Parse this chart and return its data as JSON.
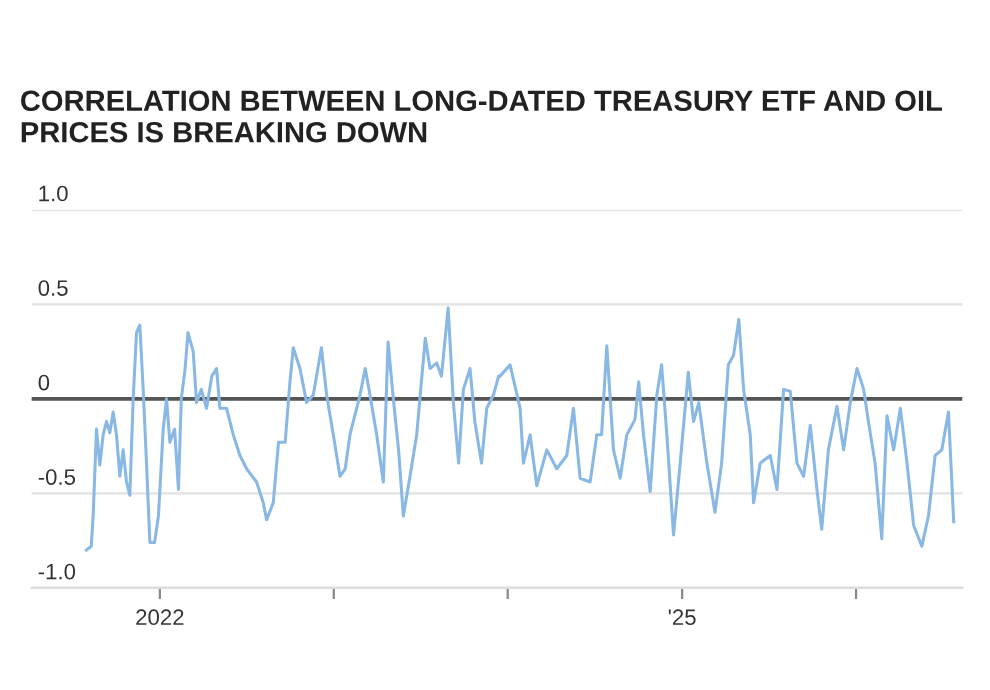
{
  "chart_data": {
    "type": "line",
    "subtitle": "CORRELATION BETWEEN LONG-DATED TREASURY ETF AND OIL PRICES IS BREAKING DOWN",
    "x": [
      "2021-07-31",
      "2021-08-10",
      "2021-08-14",
      "2021-08-21",
      "2021-08-28",
      "2021-09-04",
      "2021-09-11",
      "2021-09-18",
      "2021-09-25",
      "2021-10-02",
      "2021-10-09",
      "2021-10-16",
      "2021-10-23",
      "2021-10-30",
      "2021-11-06",
      "2021-11-13",
      "2021-11-20",
      "2021-11-27",
      "2021-12-04",
      "2021-12-11",
      "2021-12-21",
      "2021-12-29",
      "2022-01-08",
      "2022-01-15",
      "2022-01-22",
      "2022-02-01",
      "2022-02-09",
      "2022-02-15",
      "2022-02-23",
      "2022-03-01",
      "2022-03-12",
      "2022-03-19",
      "2022-03-29",
      "2022-04-09",
      "2022-04-20",
      "2022-04-30",
      "2022-05-07",
      "2022-05-21",
      "2022-06-04",
      "2022-06-18",
      "2022-07-02",
      "2022-07-23",
      "2022-08-06",
      "2022-08-13",
      "2022-08-27",
      "2022-09-07",
      "2022-09-21",
      "2022-10-01",
      "2022-10-08",
      "2022-10-22",
      "2022-11-05",
      "2022-11-19",
      "2022-12-06",
      "2022-12-17",
      "2022-12-31",
      "2023-01-14",
      "2023-01-25",
      "2023-02-04",
      "2023-02-25",
      "2023-03-08",
      "2023-03-18",
      "2023-04-01",
      "2023-04-15",
      "2023-04-25",
      "2023-05-06",
      "2023-05-17",
      "2023-05-27",
      "2023-06-10",
      "2023-06-24",
      "2023-07-12",
      "2023-07-22",
      "2023-08-05",
      "2023-08-15",
      "2023-08-29",
      "2023-09-09",
      "2023-09-20",
      "2023-09-30",
      "2023-10-14",
      "2023-10-24",
      "2023-11-07",
      "2023-11-18",
      "2023-12-02",
      "2023-12-13",
      "2023-12-16",
      "2024-01-06",
      "2024-01-27",
      "2024-02-03",
      "2024-02-17",
      "2024-03-02",
      "2024-03-23",
      "2024-04-13",
      "2024-05-04",
      "2024-05-18",
      "2024-06-01",
      "2024-06-22",
      "2024-07-06",
      "2024-07-16",
      "2024-07-27",
      "2024-08-10",
      "2024-08-24",
      "2024-09-07",
      "2024-09-24",
      "2024-10-02",
      "2024-10-12",
      "2024-10-26",
      "2024-11-09",
      "2024-11-19",
      "2024-11-30",
      "2024-12-14",
      "2024-12-28",
      "2025-01-14",
      "2025-01-25",
      "2025-02-05",
      "2025-02-22",
      "2025-03-11",
      "2025-03-25",
      "2025-04-08",
      "2025-04-19",
      "2025-04-30",
      "2025-05-10",
      "2025-05-24",
      "2025-05-31",
      "2025-06-14",
      "2025-07-05",
      "2025-07-19",
      "2025-08-02",
      "2025-08-16",
      "2025-08-30",
      "2025-09-13",
      "2025-09-27",
      "2025-10-11",
      "2025-10-21",
      "2025-11-04",
      "2025-11-22",
      "2025-12-06",
      "2025-12-20",
      "2026-01-03",
      "2026-01-17",
      "2026-01-27",
      "2026-02-10",
      "2026-02-24",
      "2026-03-07",
      "2026-03-21",
      "2026-04-04",
      "2026-04-18",
      "2026-05-02",
      "2026-05-19",
      "2026-06-02",
      "2026-06-16",
      "2026-06-30",
      "2026-07-14",
      "2026-07-25"
    ],
    "series": [
      {
        "color": "#8ab8e4",
        "values": [
          -0.8,
          -0.78,
          -0.62,
          -0.16,
          -0.35,
          -0.19,
          -0.12,
          -0.18,
          -0.07,
          -0.19,
          -0.41,
          -0.27,
          -0.44,
          -0.51,
          0.0,
          0.35,
          0.39,
          0.05,
          -0.34,
          -0.76,
          -0.76,
          -0.62,
          -0.16,
          0.0,
          -0.23,
          -0.16,
          -0.48,
          0.0,
          0.16,
          0.35,
          0.25,
          -0.02,
          0.05,
          -0.05,
          0.12,
          0.16,
          -0.05,
          -0.05,
          -0.19,
          -0.3,
          -0.37,
          -0.44,
          -0.55,
          -0.64,
          -0.55,
          -0.23,
          -0.23,
          0.09,
          0.27,
          0.16,
          -0.02,
          0.02,
          0.27,
          0.02,
          -0.19,
          -0.41,
          -0.37,
          -0.19,
          0.02,
          0.16,
          0.02,
          -0.19,
          -0.44,
          0.3,
          0.0,
          -0.27,
          -0.62,
          -0.41,
          -0.19,
          0.32,
          0.16,
          0.19,
          0.12,
          0.48,
          -0.02,
          -0.34,
          0.05,
          0.16,
          -0.12,
          -0.34,
          -0.05,
          0.02,
          0.12,
          0.12,
          0.18,
          -0.05,
          -0.34,
          -0.19,
          -0.46,
          -0.27,
          -0.37,
          -0.3,
          -0.05,
          -0.42,
          -0.44,
          -0.19,
          -0.19,
          0.28,
          -0.27,
          -0.42,
          -0.19,
          -0.11,
          0.09,
          -0.19,
          -0.49,
          0.02,
          0.18,
          -0.19,
          -0.72,
          -0.34,
          0.14,
          -0.12,
          -0.02,
          -0.34,
          -0.6,
          -0.34,
          0.18,
          0.23,
          0.42,
          0.05,
          -0.19,
          -0.55,
          -0.34,
          -0.3,
          -0.48,
          0.05,
          0.04,
          -0.34,
          -0.41,
          -0.14,
          -0.48,
          -0.69,
          -0.27,
          -0.04,
          -0.27,
          -0.02,
          0.16,
          0.05,
          -0.12,
          -0.34,
          -0.74,
          -0.09,
          -0.27,
          -0.05,
          -0.34,
          -0.67,
          -0.78,
          -0.62,
          -0.3,
          -0.27,
          -0.07,
          -0.65
        ]
      }
    ],
    "xlim": [
      "2021-04-07",
      "2026-08-12"
    ],
    "xticks": [
      {
        "value": "2022-01-01",
        "label": "2022"
      },
      {
        "value": "2023-01-01",
        "label": null
      },
      {
        "value": "2024-01-01",
        "label": null
      },
      {
        "value": "2025-01-01",
        "label": "'25"
      },
      {
        "value": "2026-01-01",
        "label": null
      }
    ],
    "ylim": [
      -1.0,
      1.0
    ],
    "yticks": [
      {
        "value": 1.0,
        "label": "1.0"
      },
      {
        "value": 0.5,
        "label": "0.5"
      },
      {
        "value": 0,
        "label": "0"
      },
      {
        "value": -0.5,
        "label": "-0.5"
      },
      {
        "value": -1.0,
        "label": "-1.0"
      }
    ],
    "ref_lines": [
      {
        "axis": "y",
        "value": 0,
        "label": null,
        "color": "#555555"
      }
    ],
    "grid": "y",
    "line_style": "solid",
    "marker": "none"
  }
}
